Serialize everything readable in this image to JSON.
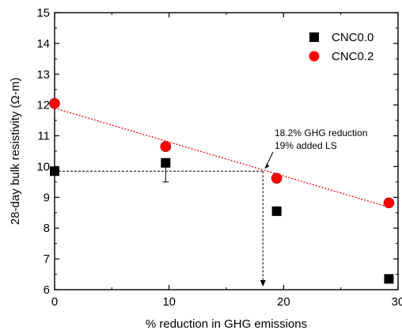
{
  "chart_data": {
    "type": "scatter",
    "title": "",
    "xlabel": "% reduction in GHG emissions",
    "ylabel": "28-day bulk resistivity (Ω-m)",
    "xlim": [
      0,
      30
    ],
    "ylim": [
      6,
      15
    ],
    "xticks": [
      0,
      10,
      20,
      30
    ],
    "yticks": [
      6,
      7,
      8,
      9,
      10,
      11,
      12,
      13,
      14,
      15
    ],
    "grid": false,
    "legend_position": "top-right",
    "series": [
      {
        "name": "CNC0.0",
        "marker": "square",
        "color": "#000000",
        "x": [
          0,
          9.7,
          19.4,
          29.2
        ],
        "y": [
          9.85,
          10.12,
          8.55,
          6.35
        ],
        "error_bars": [
          {
            "index": 1,
            "low": 9.5,
            "high": 10.12
          }
        ]
      },
      {
        "name": "CNC0.2",
        "marker": "circle",
        "color": "#ff0000",
        "x": [
          0,
          9.7,
          19.4,
          29.2
        ],
        "y": [
          12.05,
          10.65,
          9.62,
          8.82
        ]
      }
    ],
    "trendline": {
      "series": "CNC0.2",
      "color": "#ff0000",
      "style": "dotted",
      "x": [
        0,
        29.2
      ],
      "y": [
        11.9,
        8.68
      ]
    },
    "guide_lines": {
      "color": "#000000",
      "style": "dashed",
      "y": 9.85,
      "x": 18.2
    },
    "annotation": {
      "lines": [
        "18.2% GHG reduction",
        "19% added LS"
      ],
      "x": 18.2,
      "y": 9.85
    }
  }
}
